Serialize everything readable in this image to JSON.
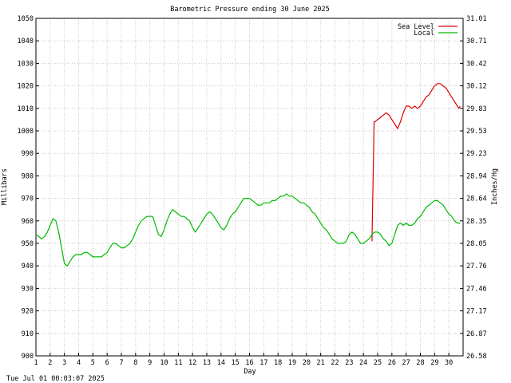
{
  "footer_timestamp": "Tue Jul 01 00:03:07 2025",
  "chart_data": {
    "type": "line",
    "title": "Barometric Pressure ending 30 June 2025",
    "xlabel": "Day",
    "ylabel_left": "Millibars",
    "ylabel_right": "Inches/Hg",
    "x_ticks": [
      1,
      2,
      3,
      4,
      5,
      6,
      7,
      8,
      9,
      10,
      11,
      12,
      13,
      14,
      15,
      16,
      17,
      18,
      19,
      20,
      21,
      22,
      23,
      24,
      25,
      26,
      27,
      28,
      29,
      30
    ],
    "xlim": [
      1,
      31
    ],
    "ylim_left": [
      900,
      1050
    ],
    "ylim_right": [
      26.58,
      31.01
    ],
    "y_ticks_left": [
      "1050",
      "1040",
      "1030",
      "1020",
      "1010",
      "1000",
      "990",
      "980",
      "970",
      "960",
      "950",
      "940",
      "930",
      "920",
      "910",
      "900"
    ],
    "y_ticks_right": [
      "31.01",
      "30.71",
      "30.42",
      "30.12",
      "29.83",
      "29.53",
      "29.23",
      "28.94",
      "28.64",
      "28.35",
      "28.05",
      "27.76",
      "27.46",
      "27.17",
      "26.87",
      "26.58"
    ],
    "grid": true,
    "legend_position": "top-right",
    "series": [
      {
        "name": "Sea Level",
        "color": "#dd0000",
        "x": [
          24.6,
          24.7,
          24.75,
          24.8,
          25.0,
          25.2,
          25.4,
          25.6,
          25.8,
          26.0,
          26.2,
          26.4,
          26.6,
          26.8,
          27.0,
          27.2,
          27.4,
          27.6,
          27.8,
          28.0,
          28.2,
          28.4,
          28.6,
          28.8,
          29.0,
          29.2,
          29.4,
          29.6,
          29.8,
          30.0,
          30.2,
          30.4,
          30.6,
          30.7,
          30.8
        ],
        "y": [
          951,
          985,
          1004,
          1004,
          1005,
          1006,
          1007,
          1008,
          1007,
          1005,
          1003,
          1001,
          1004,
          1008,
          1011,
          1011,
          1010,
          1011,
          1010,
          1011,
          1013,
          1015,
          1016,
          1018,
          1020,
          1021,
          1021,
          1020,
          1019,
          1017,
          1015,
          1013,
          1011,
          1010,
          1011
        ]
      },
      {
        "name": "Local",
        "color": "#00bb00",
        "x": [
          1.0,
          1.2,
          1.4,
          1.6,
          1.8,
          2.0,
          2.2,
          2.4,
          2.6,
          2.8,
          3.0,
          3.2,
          3.4,
          3.6,
          3.8,
          4.0,
          4.2,
          4.4,
          4.6,
          4.8,
          5.0,
          5.2,
          5.4,
          5.6,
          5.8,
          6.0,
          6.2,
          6.4,
          6.6,
          6.8,
          7.0,
          7.2,
          7.4,
          7.6,
          7.8,
          8.0,
          8.2,
          8.4,
          8.6,
          8.8,
          9.0,
          9.2,
          9.4,
          9.6,
          9.8,
          10.0,
          10.2,
          10.4,
          10.6,
          10.8,
          11.0,
          11.2,
          11.4,
          11.6,
          11.8,
          12.0,
          12.2,
          12.4,
          12.6,
          12.8,
          13.0,
          13.2,
          13.4,
          13.6,
          13.8,
          14.0,
          14.2,
          14.4,
          14.6,
          14.8,
          15.0,
          15.2,
          15.4,
          15.6,
          15.8,
          16.0,
          16.2,
          16.4,
          16.6,
          16.8,
          17.0,
          17.2,
          17.4,
          17.6,
          17.8,
          18.0,
          18.2,
          18.4,
          18.6,
          18.8,
          19.0,
          19.2,
          19.4,
          19.6,
          19.8,
          20.0,
          20.2,
          20.4,
          20.6,
          20.8,
          21.0,
          21.2,
          21.4,
          21.6,
          21.8,
          22.0,
          22.2,
          22.4,
          22.6,
          22.8,
          23.0,
          23.2,
          23.4,
          23.6,
          23.8,
          24.0,
          24.2,
          24.4,
          24.6,
          24.8,
          25.0,
          25.2,
          25.4,
          25.6,
          25.8,
          26.0,
          26.2,
          26.4,
          26.6,
          26.8,
          27.0,
          27.2,
          27.4,
          27.6,
          27.8,
          28.0,
          28.2,
          28.4,
          28.6,
          28.8,
          29.0,
          29.2,
          29.4,
          29.6,
          29.8,
          30.0,
          30.2,
          30.4,
          30.6,
          30.8
        ],
        "y": [
          954,
          953,
          952,
          953,
          955,
          958,
          961,
          960,
          955,
          948,
          941,
          940,
          942,
          944,
          945,
          945,
          945,
          946,
          946,
          945,
          944,
          944,
          944,
          944,
          945,
          946,
          948,
          950,
          950,
          949,
          948,
          948,
          949,
          950,
          952,
          955,
          958,
          960,
          961,
          962,
          962,
          962,
          958,
          954,
          953,
          956,
          960,
          963,
          965,
          964,
          963,
          962,
          962,
          961,
          960,
          957,
          955,
          957,
          959,
          961,
          963,
          964,
          963,
          961,
          959,
          957,
          956,
          958,
          961,
          963,
          964,
          966,
          968,
          970,
          970,
          970,
          969,
          968,
          967,
          967,
          968,
          968,
          968,
          969,
          969,
          970,
          971,
          971,
          972,
          971,
          971,
          970,
          969,
          968,
          968,
          967,
          966,
          964,
          963,
          961,
          959,
          957,
          956,
          954,
          952,
          951,
          950,
          950,
          950,
          951,
          954,
          955,
          954,
          952,
          950,
          950,
          951,
          952,
          954,
          955,
          955,
          954,
          952,
          951,
          949,
          950,
          954,
          958,
          959,
          958,
          959,
          958,
          958,
          959,
          961,
          962,
          964,
          966,
          967,
          968,
          969,
          969,
          968,
          967,
          965,
          963,
          962,
          960,
          959,
          959
        ]
      }
    ]
  }
}
